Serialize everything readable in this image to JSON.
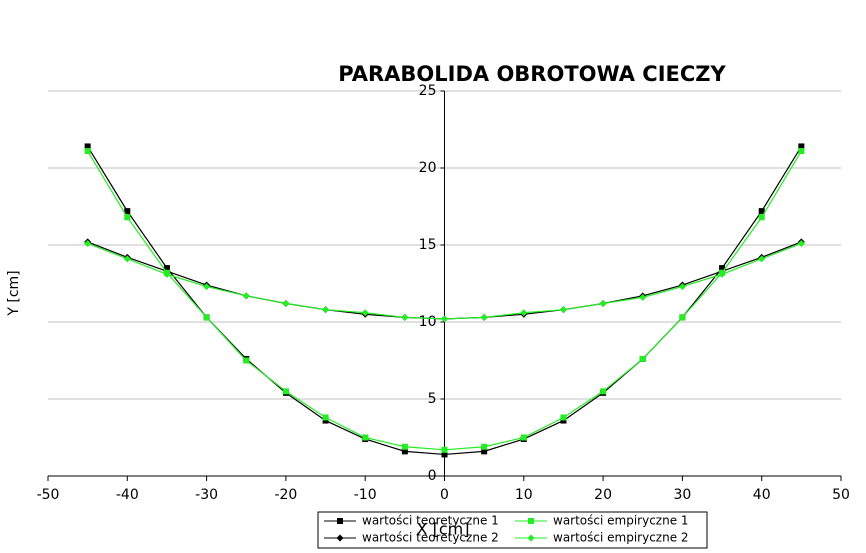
{
  "chart_data": {
    "type": "line",
    "title": "PARABOLIDA OBROTOWA CIECZY",
    "x_label": "X [cm]",
    "y_label": "Y [cm]",
    "x": [
      -45,
      -40,
      -35,
      -30,
      -25,
      -20,
      -15,
      -10,
      -5,
      0,
      5,
      10,
      15,
      20,
      25,
      30,
      35,
      40,
      45
    ],
    "series": [
      {
        "name": "wartości teoretyczne 1",
        "color": "#000000",
        "marker": "square",
        "values": [
          21.4,
          17.2,
          13.5,
          10.3,
          7.6,
          5.4,
          3.6,
          2.4,
          1.6,
          1.4,
          1.6,
          2.4,
          3.6,
          5.4,
          7.6,
          10.3,
          13.5,
          17.2,
          21.4
        ]
      },
      {
        "name": "wartości teoretyczne 2",
        "color": "#000000",
        "marker": "diamond",
        "values": [
          15.2,
          14.2,
          13.3,
          12.4,
          11.7,
          11.2,
          10.8,
          10.5,
          10.3,
          10.2,
          10.3,
          10.5,
          10.8,
          11.2,
          11.7,
          12.4,
          13.3,
          14.2,
          15.2
        ]
      },
      {
        "name": "wartości empiryczne 1",
        "color": "#22ee22",
        "marker": "square",
        "values": [
          21.1,
          16.8,
          13.2,
          10.3,
          7.5,
          5.5,
          3.8,
          2.5,
          1.9,
          1.7,
          1.9,
          2.5,
          3.8,
          5.5,
          7.6,
          10.3,
          13.2,
          16.8,
          21.1
        ]
      },
      {
        "name": "wartości empiryczne 2",
        "color": "#22ee22",
        "marker": "diamond",
        "values": [
          15.1,
          14.1,
          13.1,
          12.3,
          11.7,
          11.2,
          10.8,
          10.6,
          10.3,
          10.2,
          10.3,
          10.6,
          10.8,
          11.2,
          11.6,
          12.3,
          13.1,
          14.1,
          15.1
        ]
      }
    ],
    "xlim": [
      -50,
      50
    ],
    "xticks": [
      -50,
      -40,
      -30,
      -20,
      -10,
      0,
      10,
      20,
      30,
      40,
      50
    ],
    "ylim": [
      0,
      25
    ],
    "yticks": [
      0,
      5,
      10,
      15,
      20,
      25
    ],
    "grid": true
  }
}
